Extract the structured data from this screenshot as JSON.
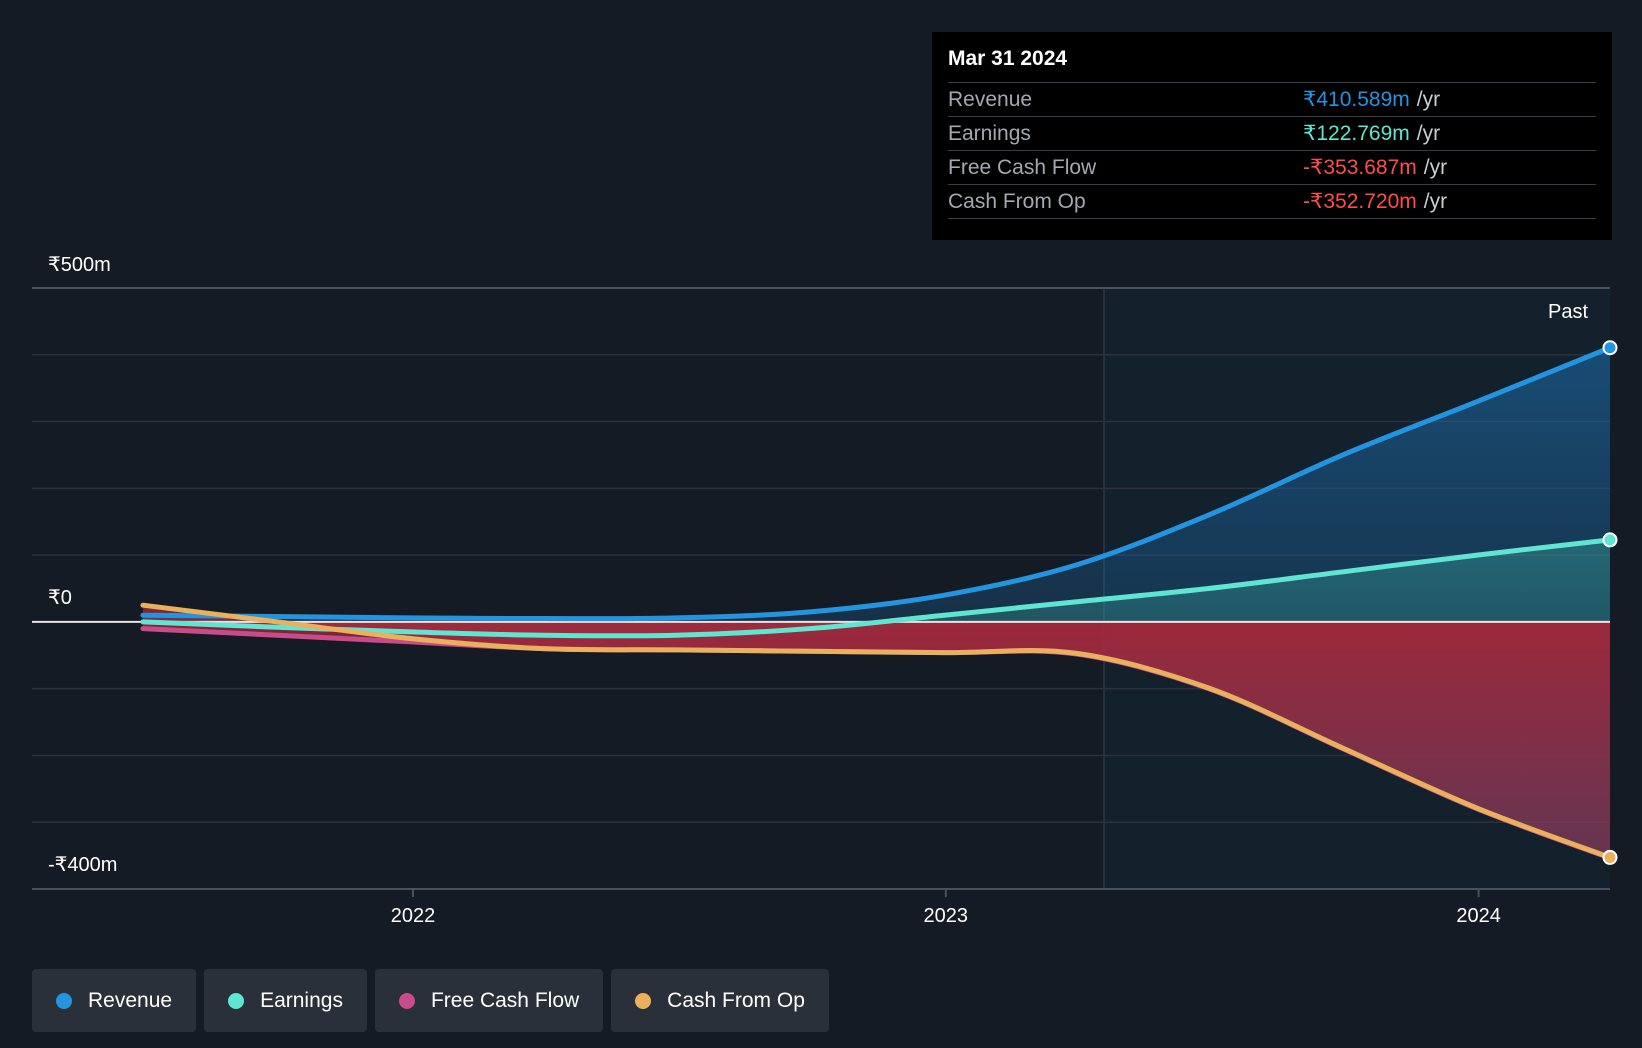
{
  "tooltip": {
    "date": "Mar 31 2024",
    "rows": [
      {
        "label": "Revenue",
        "value": "₹410.589m",
        "unit": "/yr",
        "color": "#2394df"
      },
      {
        "label": "Earnings",
        "value": "₹122.769m",
        "unit": "/yr",
        "color": "#5fe5d2"
      },
      {
        "label": "Free Cash Flow",
        "value": "-₹353.687m",
        "unit": "/yr",
        "color": "#ff4d4d"
      },
      {
        "label": "Cash From Op",
        "value": "-₹352.720m",
        "unit": "/yr",
        "color": "#ff4d4d"
      }
    ]
  },
  "past_label": "Past",
  "legend": [
    {
      "label": "Revenue",
      "color": "#2394df"
    },
    {
      "label": "Earnings",
      "color": "#5fe5d2"
    },
    {
      "label": "Free Cash Flow",
      "color": "#c84b8a"
    },
    {
      "label": "Cash From Op",
      "color": "#e9b15e"
    }
  ],
  "chart_data": {
    "type": "area",
    "y_top_label": "₹500m",
    "y_zero_label": "₹0",
    "y_bottom_label": "-₹400m",
    "ylim": [
      -400,
      500
    ],
    "xlim": [
      "2021-04-15",
      "2024-03-31"
    ],
    "x_ticks": [
      {
        "label": "2022",
        "date": "2022-01-01"
      },
      {
        "label": "2023",
        "date": "2023-01-01"
      },
      {
        "label": "2024",
        "date": "2024-01-01"
      }
    ],
    "past_start": "2023-03-31",
    "grid": true,
    "series": [
      {
        "name": "Revenue",
        "color": "#2394df",
        "points": [
          [
            "2021-06-30",
            10
          ],
          [
            "2021-09-30",
            8
          ],
          [
            "2021-12-31",
            6
          ],
          [
            "2022-03-31",
            5
          ],
          [
            "2022-06-30",
            6
          ],
          [
            "2022-09-30",
            15
          ],
          [
            "2022-12-31",
            40
          ],
          [
            "2023-03-31",
            85
          ],
          [
            "2023-06-30",
            160
          ],
          [
            "2023-09-30",
            250
          ],
          [
            "2023-12-31",
            330
          ],
          [
            "2024-03-31",
            410.589
          ]
        ]
      },
      {
        "name": "Earnings",
        "color": "#5fe5d2",
        "points": [
          [
            "2021-06-30",
            0
          ],
          [
            "2021-09-30",
            -8
          ],
          [
            "2021-12-31",
            -15
          ],
          [
            "2022-03-31",
            -20
          ],
          [
            "2022-06-30",
            -20
          ],
          [
            "2022-09-30",
            -10
          ],
          [
            "2022-12-31",
            10
          ],
          [
            "2023-03-31",
            30
          ],
          [
            "2023-06-30",
            50
          ],
          [
            "2023-09-30",
            75
          ],
          [
            "2023-12-31",
            100
          ],
          [
            "2024-03-31",
            122.769
          ]
        ]
      },
      {
        "name": "Free Cash Flow",
        "color": "#c84b8a",
        "points": [
          [
            "2021-06-30",
            -10
          ],
          [
            "2021-09-30",
            -20
          ],
          [
            "2021-12-31",
            -30
          ],
          [
            "2022-03-31",
            -40
          ],
          [
            "2022-06-30",
            -42
          ],
          [
            "2022-09-30",
            -44
          ],
          [
            "2022-12-31",
            -46
          ],
          [
            "2023-03-31",
            -48
          ],
          [
            "2023-06-30",
            -100
          ],
          [
            "2023-09-30",
            -190
          ],
          [
            "2023-12-31",
            -280
          ],
          [
            "2024-03-31",
            -353.687
          ]
        ]
      },
      {
        "name": "Cash From Op",
        "color": "#e9b15e",
        "points": [
          [
            "2021-06-30",
            25
          ],
          [
            "2021-09-30",
            0
          ],
          [
            "2021-12-31",
            -25
          ],
          [
            "2022-03-31",
            -40
          ],
          [
            "2022-06-30",
            -42
          ],
          [
            "2022-09-30",
            -44
          ],
          [
            "2022-12-31",
            -46
          ],
          [
            "2023-03-31",
            -47
          ],
          [
            "2023-06-30",
            -99
          ],
          [
            "2023-09-30",
            -189
          ],
          [
            "2023-12-31",
            -279
          ],
          [
            "2024-03-31",
            -352.72
          ]
        ]
      }
    ]
  }
}
